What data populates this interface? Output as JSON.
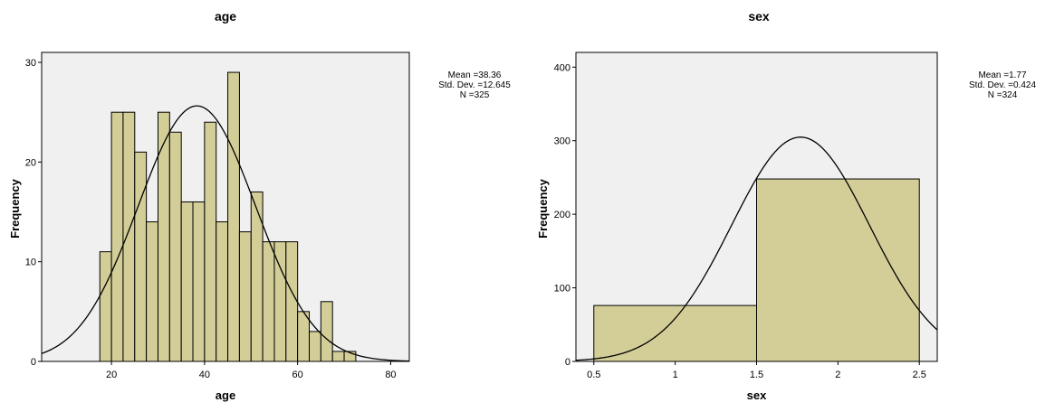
{
  "colors": {
    "plot_bg": "#f0f0f0",
    "bar_fill": "#d3ce98",
    "bar_stroke": "#000000",
    "curve": "#000000"
  },
  "chart_data": [
    {
      "type": "bar",
      "title": "age",
      "xlabel": "age",
      "ylabel": "Frequency",
      "grid": false,
      "xlim": [
        5,
        84
      ],
      "ylim": [
        0,
        31
      ],
      "xticks": [
        20,
        40,
        60,
        80
      ],
      "yticks": [
        0,
        10,
        20,
        30
      ],
      "bin_width": 2.5,
      "bins": [
        {
          "x0": 17.5,
          "count": 11
        },
        {
          "x0": 20,
          "count": 25
        },
        {
          "x0": 22.5,
          "count": 25
        },
        {
          "x0": 25,
          "count": 21
        },
        {
          "x0": 27.5,
          "count": 14
        },
        {
          "x0": 30,
          "count": 25
        },
        {
          "x0": 32.5,
          "count": 23
        },
        {
          "x0": 35,
          "count": 16
        },
        {
          "x0": 37.5,
          "count": 16
        },
        {
          "x0": 40,
          "count": 24
        },
        {
          "x0": 42.5,
          "count": 14
        },
        {
          "x0": 45,
          "count": 29
        },
        {
          "x0": 47.5,
          "count": 13
        },
        {
          "x0": 50,
          "count": 17
        },
        {
          "x0": 52.5,
          "count": 12
        },
        {
          "x0": 55,
          "count": 12
        },
        {
          "x0": 57.5,
          "count": 12
        },
        {
          "x0": 60,
          "count": 5
        },
        {
          "x0": 62.5,
          "count": 3
        },
        {
          "x0": 65,
          "count": 6
        },
        {
          "x0": 67.5,
          "count": 1
        },
        {
          "x0": 70,
          "count": 1
        }
      ],
      "stats": {
        "mean": "Mean =38.36",
        "std": "Std. Dev. =12.645",
        "n": "N =325"
      },
      "normal": {
        "mean": 38.36,
        "sd": 12.645,
        "n": 325
      }
    },
    {
      "type": "bar",
      "title": "sex",
      "xlabel": "sex",
      "ylabel": "Frequency",
      "grid": false,
      "xlim": [
        0.39,
        2.61
      ],
      "ylim": [
        0,
        420
      ],
      "xticks": [
        0.5,
        1,
        1.5,
        2,
        2.5
      ],
      "xtick_labels": [
        "0.5",
        "1",
        "1.5",
        "2",
        "2.5"
      ],
      "yticks": [
        0,
        100,
        200,
        300,
        400
      ],
      "bin_width": 1,
      "bins": [
        {
          "x0": 0.5,
          "count": 76
        },
        {
          "x0": 1.5,
          "count": 248
        }
      ],
      "stats": {
        "mean": "Mean =1.77",
        "std": "Std. Dev. =0.424",
        "n": "N =324"
      },
      "normal": {
        "mean": 1.77,
        "sd": 0.424,
        "n": 324
      }
    }
  ]
}
